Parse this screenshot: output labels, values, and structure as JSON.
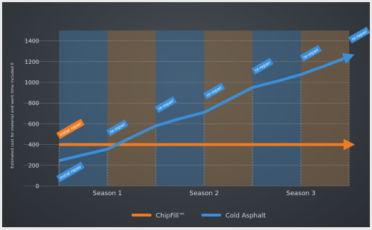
{
  "chart_data": {
    "type": "line",
    "ylabel": "Estimated cost for material and work time included €",
    "ylim": [
      0,
      1500
    ],
    "yticks": [
      0,
      200,
      400,
      600,
      800,
      1000,
      1200,
      1400
    ],
    "categories": [
      "Season 1",
      "Season 2",
      "Season 3"
    ],
    "x": [
      0,
      0.5,
      1,
      1.5,
      2,
      2.5,
      3,
      3.5,
      4,
      4.5,
      5,
      5.5,
      6
    ],
    "series": [
      {
        "name": "ChipFill™",
        "color": "#f07c22",
        "values": [
          400,
          400,
          400,
          400,
          400,
          400,
          400,
          400,
          400,
          400,
          400,
          400,
          400
        ]
      },
      {
        "name": "Cold Asphalt",
        "color": "#3a8fd8",
        "values": [
          245,
          300,
          355,
          470,
          580,
          650,
          710,
          830,
          950,
          1010,
          1075,
          1160,
          1250
        ]
      }
    ],
    "bands": [
      {
        "color": "#3f6e95"
      },
      {
        "color": "#8b6b47"
      },
      {
        "color": "#3f6e95"
      },
      {
        "color": "#8b6b47"
      },
      {
        "color": "#3f6e95"
      },
      {
        "color": "#8b6b47"
      }
    ],
    "annotations": [
      {
        "text": "Initial repair",
        "series": "ChipFill™",
        "x": 0,
        "y": 400
      },
      {
        "text": "Initial repair",
        "series": "Cold Asphalt",
        "x": 0,
        "y": 245
      },
      {
        "text": "re-repair",
        "series": "Cold Asphalt",
        "x": 1,
        "y": 355
      },
      {
        "text": "re-repair",
        "series": "Cold Asphalt",
        "x": 2,
        "y": 580
      },
      {
        "text": "re-repair",
        "series": "Cold Asphalt",
        "x": 3,
        "y": 710
      },
      {
        "text": "re-repair",
        "series": "Cold Asphalt",
        "x": 4,
        "y": 950
      },
      {
        "text": "re-repair",
        "series": "Cold Asphalt",
        "x": 5,
        "y": 1075
      },
      {
        "text": "re-repair",
        "series": "Cold Asphalt",
        "x": 6,
        "y": 1250
      }
    ],
    "legend": "bottom",
    "grid": true
  }
}
